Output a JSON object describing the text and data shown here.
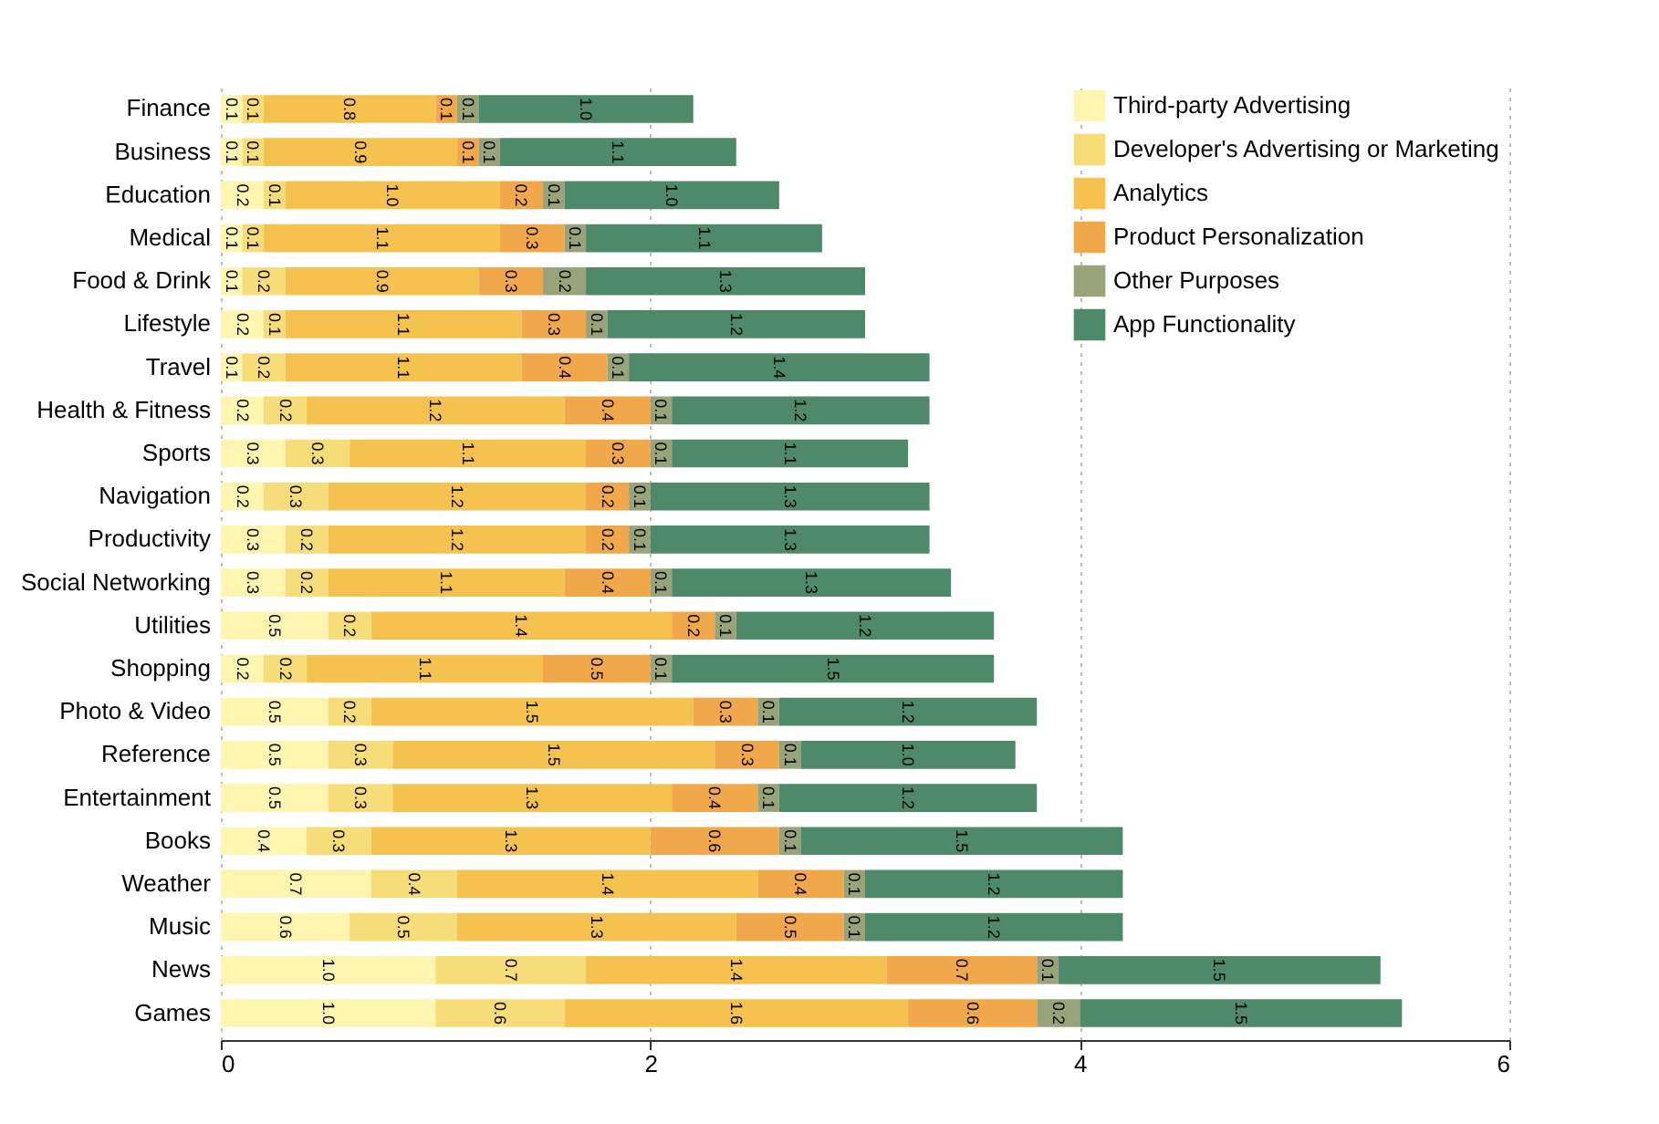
{
  "chart_data": {
    "type": "bar",
    "orientation": "horizontal",
    "stacked": true,
    "grid": "x",
    "legend": "top right",
    "categories": [
      "Finance",
      "Business",
      "Education",
      "Medical",
      "Food & Drink",
      "Lifestyle",
      "Travel",
      "Health & Fitness",
      "Sports",
      "Navigation",
      "Productivity",
      "Social Networking",
      "Utilities",
      "Shopping",
      "Photo & Video",
      "Reference",
      "Entertainment",
      "Books",
      "Weather",
      "Music",
      "News",
      "Games"
    ],
    "xlim": [
      0,
      6
    ],
    "xticks": [
      0,
      2,
      4,
      6
    ],
    "series": [
      {
        "name": "Third-party Advertising",
        "color": "#fdf5b0",
        "values": [
          0.1,
          0.1,
          0.2,
          0.1,
          0.1,
          0.2,
          0.1,
          0.2,
          0.3,
          0.2,
          0.3,
          0.3,
          0.5,
          0.2,
          0.5,
          0.5,
          0.5,
          0.4,
          0.7,
          0.6,
          1.0,
          1.0
        ],
        "value_labels": [
          "0.1",
          "0.1",
          "0.2",
          "0.1",
          "0.1",
          "0.2",
          "0.1",
          "0.2",
          "0.3",
          "0.2",
          "0.3",
          "0.3",
          "0.5",
          "0.2",
          "0.5",
          "0.5",
          "0.5",
          "0.4",
          "0.7",
          "0.6",
          "1.0",
          "1.0"
        ]
      },
      {
        "name": "Developer's Advertising or Marketing",
        "color": "#f7dc7a",
        "values": [
          0.1,
          0.1,
          0.1,
          0.1,
          0.2,
          0.1,
          0.2,
          0.2,
          0.3,
          0.3,
          0.2,
          0.2,
          0.2,
          0.2,
          0.2,
          0.3,
          0.3,
          0.3,
          0.4,
          0.5,
          0.7,
          0.6
        ],
        "value_labels": [
          "0.1",
          "0.1",
          "0.1",
          "0.1",
          "0.2",
          "0.1",
          "0.2",
          "0.2",
          "0.3",
          "0.3",
          "0.2",
          "0.2",
          "0.2",
          "0.2",
          "0.2",
          "0.3",
          "0.3",
          "0.3",
          "0.4",
          "0.5",
          "0.7",
          "0.6"
        ]
      },
      {
        "name": "Analytics",
        "color": "#f6c24f",
        "values": [
          0.8,
          0.9,
          1.0,
          1.1,
          0.9,
          1.1,
          1.1,
          1.2,
          1.1,
          1.2,
          1.2,
          1.1,
          1.4,
          1.1,
          1.5,
          1.5,
          1.3,
          1.3,
          1.4,
          1.3,
          1.4,
          1.6
        ],
        "value_labels": [
          "0.8",
          "0.9",
          "1.0",
          "1.1",
          "0.9",
          "1.1",
          "1.1",
          "1.2",
          "1.1",
          "1.2",
          "1.2",
          "1.1",
          "1.4",
          "1.1",
          "1.5",
          "1.5",
          "1.3",
          "1.3",
          "1.4",
          "1.3",
          "1.4",
          "1.6"
        ]
      },
      {
        "name": "Product Personalization",
        "color": "#f0a84b",
        "values": [
          0.1,
          0.1,
          0.2,
          0.3,
          0.3,
          0.3,
          0.4,
          0.4,
          0.3,
          0.2,
          0.2,
          0.4,
          0.2,
          0.5,
          0.3,
          0.3,
          0.4,
          0.6,
          0.4,
          0.5,
          0.7,
          0.6
        ],
        "value_labels": [
          "0.1",
          "0.1",
          "0.2",
          "0.3",
          "0.3",
          "0.3",
          "0.4",
          "0.4",
          "0.3",
          "0.2",
          "0.2",
          "0.4",
          "0.2",
          "0.5",
          "0.3",
          "0.3",
          "0.4",
          "0.6",
          "0.4",
          "0.5",
          "0.7",
          "0.6"
        ]
      },
      {
        "name": "Other Purposes",
        "color": "#98a37a",
        "values": [
          0.1,
          0.1,
          0.1,
          0.1,
          0.2,
          0.1,
          0.1,
          0.1,
          0.1,
          0.1,
          0.1,
          0.1,
          0.1,
          0.1,
          0.1,
          0.1,
          0.1,
          0.1,
          0.1,
          0.1,
          0.1,
          0.2
        ],
        "value_labels": [
          "0.1",
          "0.1",
          "0.1",
          "0.1",
          "0.2",
          "0.1",
          "0.1",
          "0.1",
          "0.1",
          "0.1",
          "0.1",
          "0.1",
          "0.1",
          "0.1",
          "0.1",
          "0.1",
          "0.1",
          "0.1",
          "0.1",
          "0.1",
          "0.1",
          "0.2"
        ]
      },
      {
        "name": "App Functionality",
        "color": "#4e8a6a",
        "values": [
          1.0,
          1.1,
          1.0,
          1.1,
          1.3,
          1.2,
          1.4,
          1.2,
          1.1,
          1.3,
          1.3,
          1.3,
          1.2,
          1.5,
          1.2,
          1.0,
          1.2,
          1.5,
          1.2,
          1.2,
          1.5,
          1.5
        ],
        "value_labels": [
          "1.0",
          "1.1",
          "1.0",
          "1.1",
          "1.3",
          "1.2",
          "1.4",
          "1.2",
          "1.1",
          "1.3",
          "1.3",
          "1.3",
          "1.2",
          "1.5",
          "1.2",
          "1.0",
          "1.2",
          "1.5",
          "1.2",
          "1.2",
          "1.5",
          "1.5"
        ]
      }
    ]
  }
}
